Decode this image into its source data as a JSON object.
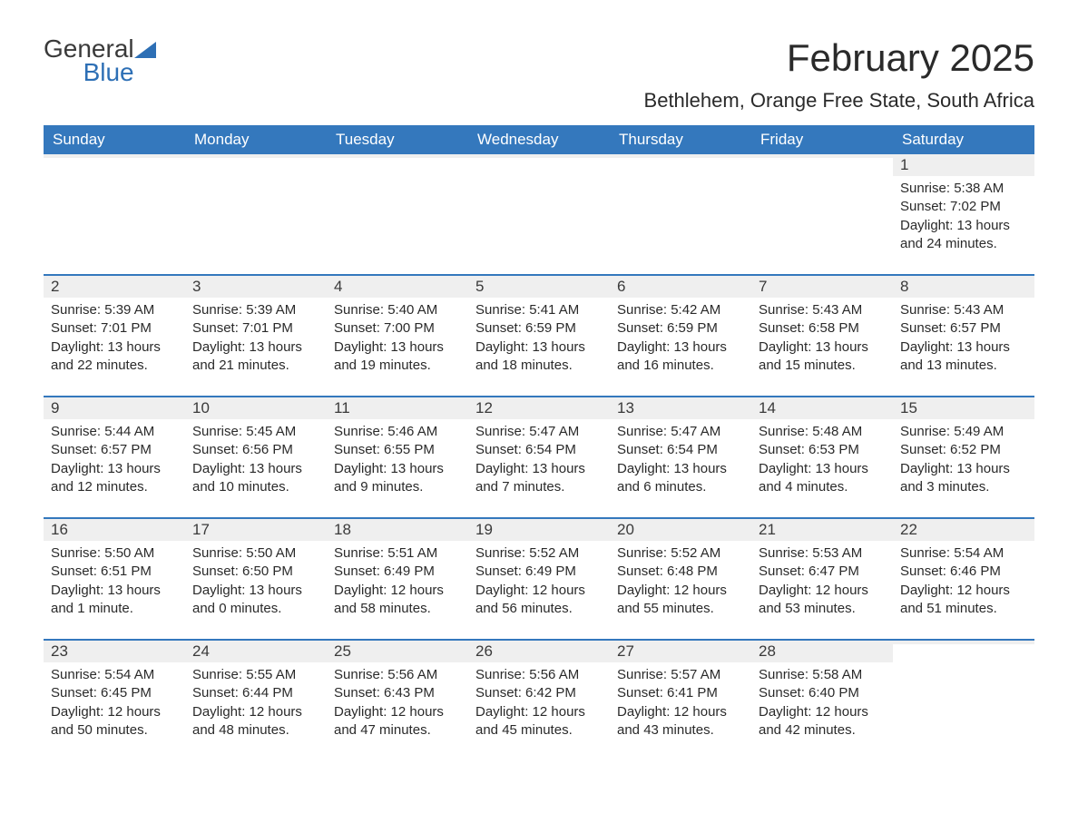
{
  "logo": {
    "word1": "General",
    "word2": "Blue"
  },
  "title": "February 2025",
  "subtitle": "Bethlehem, Orange Free State, South Africa",
  "colors": {
    "header_bg": "#3478bd",
    "header_text": "#ffffff",
    "daynum_bg": "#efefef",
    "text": "#2a2a2a",
    "logo_blue": "#2d6fb5",
    "row_border": "#3478bd",
    "page_bg": "#ffffff"
  },
  "day_headers": [
    "Sunday",
    "Monday",
    "Tuesday",
    "Wednesday",
    "Thursday",
    "Friday",
    "Saturday"
  ],
  "weeks": [
    [
      {
        "day": "",
        "sunrise": "",
        "sunset": "",
        "daylight": ""
      },
      {
        "day": "",
        "sunrise": "",
        "sunset": "",
        "daylight": ""
      },
      {
        "day": "",
        "sunrise": "",
        "sunset": "",
        "daylight": ""
      },
      {
        "day": "",
        "sunrise": "",
        "sunset": "",
        "daylight": ""
      },
      {
        "day": "",
        "sunrise": "",
        "sunset": "",
        "daylight": ""
      },
      {
        "day": "",
        "sunrise": "",
        "sunset": "",
        "daylight": ""
      },
      {
        "day": "1",
        "sunrise": "Sunrise: 5:38 AM",
        "sunset": "Sunset: 7:02 PM",
        "daylight": "Daylight: 13 hours and 24 minutes."
      }
    ],
    [
      {
        "day": "2",
        "sunrise": "Sunrise: 5:39 AM",
        "sunset": "Sunset: 7:01 PM",
        "daylight": "Daylight: 13 hours and 22 minutes."
      },
      {
        "day": "3",
        "sunrise": "Sunrise: 5:39 AM",
        "sunset": "Sunset: 7:01 PM",
        "daylight": "Daylight: 13 hours and 21 minutes."
      },
      {
        "day": "4",
        "sunrise": "Sunrise: 5:40 AM",
        "sunset": "Sunset: 7:00 PM",
        "daylight": "Daylight: 13 hours and 19 minutes."
      },
      {
        "day": "5",
        "sunrise": "Sunrise: 5:41 AM",
        "sunset": "Sunset: 6:59 PM",
        "daylight": "Daylight: 13 hours and 18 minutes."
      },
      {
        "day": "6",
        "sunrise": "Sunrise: 5:42 AM",
        "sunset": "Sunset: 6:59 PM",
        "daylight": "Daylight: 13 hours and 16 minutes."
      },
      {
        "day": "7",
        "sunrise": "Sunrise: 5:43 AM",
        "sunset": "Sunset: 6:58 PM",
        "daylight": "Daylight: 13 hours and 15 minutes."
      },
      {
        "day": "8",
        "sunrise": "Sunrise: 5:43 AM",
        "sunset": "Sunset: 6:57 PM",
        "daylight": "Daylight: 13 hours and 13 minutes."
      }
    ],
    [
      {
        "day": "9",
        "sunrise": "Sunrise: 5:44 AM",
        "sunset": "Sunset: 6:57 PM",
        "daylight": "Daylight: 13 hours and 12 minutes."
      },
      {
        "day": "10",
        "sunrise": "Sunrise: 5:45 AM",
        "sunset": "Sunset: 6:56 PM",
        "daylight": "Daylight: 13 hours and 10 minutes."
      },
      {
        "day": "11",
        "sunrise": "Sunrise: 5:46 AM",
        "sunset": "Sunset: 6:55 PM",
        "daylight": "Daylight: 13 hours and 9 minutes."
      },
      {
        "day": "12",
        "sunrise": "Sunrise: 5:47 AM",
        "sunset": "Sunset: 6:54 PM",
        "daylight": "Daylight: 13 hours and 7 minutes."
      },
      {
        "day": "13",
        "sunrise": "Sunrise: 5:47 AM",
        "sunset": "Sunset: 6:54 PM",
        "daylight": "Daylight: 13 hours and 6 minutes."
      },
      {
        "day": "14",
        "sunrise": "Sunrise: 5:48 AM",
        "sunset": "Sunset: 6:53 PM",
        "daylight": "Daylight: 13 hours and 4 minutes."
      },
      {
        "day": "15",
        "sunrise": "Sunrise: 5:49 AM",
        "sunset": "Sunset: 6:52 PM",
        "daylight": "Daylight: 13 hours and 3 minutes."
      }
    ],
    [
      {
        "day": "16",
        "sunrise": "Sunrise: 5:50 AM",
        "sunset": "Sunset: 6:51 PM",
        "daylight": "Daylight: 13 hours and 1 minute."
      },
      {
        "day": "17",
        "sunrise": "Sunrise: 5:50 AM",
        "sunset": "Sunset: 6:50 PM",
        "daylight": "Daylight: 13 hours and 0 minutes."
      },
      {
        "day": "18",
        "sunrise": "Sunrise: 5:51 AM",
        "sunset": "Sunset: 6:49 PM",
        "daylight": "Daylight: 12 hours and 58 minutes."
      },
      {
        "day": "19",
        "sunrise": "Sunrise: 5:52 AM",
        "sunset": "Sunset: 6:49 PM",
        "daylight": "Daylight: 12 hours and 56 minutes."
      },
      {
        "day": "20",
        "sunrise": "Sunrise: 5:52 AM",
        "sunset": "Sunset: 6:48 PM",
        "daylight": "Daylight: 12 hours and 55 minutes."
      },
      {
        "day": "21",
        "sunrise": "Sunrise: 5:53 AM",
        "sunset": "Sunset: 6:47 PM",
        "daylight": "Daylight: 12 hours and 53 minutes."
      },
      {
        "day": "22",
        "sunrise": "Sunrise: 5:54 AM",
        "sunset": "Sunset: 6:46 PM",
        "daylight": "Daylight: 12 hours and 51 minutes."
      }
    ],
    [
      {
        "day": "23",
        "sunrise": "Sunrise: 5:54 AM",
        "sunset": "Sunset: 6:45 PM",
        "daylight": "Daylight: 12 hours and 50 minutes."
      },
      {
        "day": "24",
        "sunrise": "Sunrise: 5:55 AM",
        "sunset": "Sunset: 6:44 PM",
        "daylight": "Daylight: 12 hours and 48 minutes."
      },
      {
        "day": "25",
        "sunrise": "Sunrise: 5:56 AM",
        "sunset": "Sunset: 6:43 PM",
        "daylight": "Daylight: 12 hours and 47 minutes."
      },
      {
        "day": "26",
        "sunrise": "Sunrise: 5:56 AM",
        "sunset": "Sunset: 6:42 PM",
        "daylight": "Daylight: 12 hours and 45 minutes."
      },
      {
        "day": "27",
        "sunrise": "Sunrise: 5:57 AM",
        "sunset": "Sunset: 6:41 PM",
        "daylight": "Daylight: 12 hours and 43 minutes."
      },
      {
        "day": "28",
        "sunrise": "Sunrise: 5:58 AM",
        "sunset": "Sunset: 6:40 PM",
        "daylight": "Daylight: 12 hours and 42 minutes."
      },
      {
        "day": "",
        "sunrise": "",
        "sunset": "",
        "daylight": ""
      }
    ]
  ]
}
